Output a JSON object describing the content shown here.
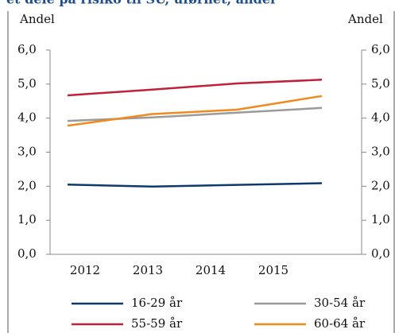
{
  "chart_data": {
    "type": "line",
    "title": "et dele på risiko til SU, uførhet, andel",
    "ylabel": "Andel",
    "y2label": "Andel",
    "categories": [
      "2012",
      "2013",
      "2014",
      "2015"
    ],
    "series": [
      {
        "name": "16-29 år",
        "color": "#0d3a6b",
        "values": [
          2.05,
          1.99,
          2.04,
          2.09
        ]
      },
      {
        "name": "30-54 år",
        "color": "#9a9a9a",
        "values": [
          3.92,
          4.02,
          4.16,
          4.3
        ]
      },
      {
        "name": "55-59 år",
        "color": "#c0213a",
        "values": [
          4.67,
          4.84,
          5.02,
          5.13
        ]
      },
      {
        "name": "60-64 år",
        "color": "#f08a1c",
        "values": [
          3.78,
          4.12,
          4.25,
          4.65
        ]
      }
    ],
    "ylim": [
      0,
      6
    ],
    "yticks": [
      {
        "value": 0,
        "label": "0,0"
      },
      {
        "value": 1,
        "label": "1,0"
      },
      {
        "value": 2,
        "label": "2,0"
      },
      {
        "value": 3,
        "label": "3,0"
      },
      {
        "value": 4,
        "label": "4,0"
      },
      {
        "value": 5,
        "label": "5,0"
      },
      {
        "value": 6,
        "label": "6,0"
      }
    ],
    "y2lim": [
      0,
      6
    ],
    "y2ticks": [
      {
        "value": 0,
        "label": "0,0"
      },
      {
        "value": 1,
        "label": "1,0"
      },
      {
        "value": 2,
        "label": "2,0"
      },
      {
        "value": 3,
        "label": "3,0"
      },
      {
        "value": 4,
        "label": "4,0"
      },
      {
        "value": 5,
        "label": "5,0"
      },
      {
        "value": 6,
        "label": "6,0"
      }
    ],
    "legend": "bottom"
  }
}
